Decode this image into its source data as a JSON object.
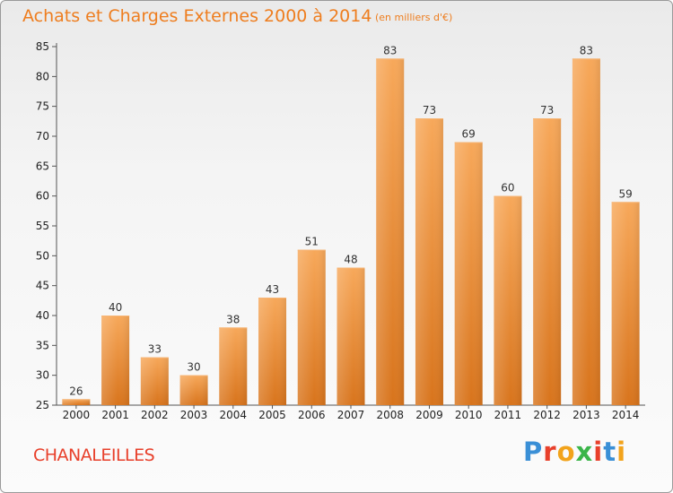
{
  "chart_data": {
    "type": "bar",
    "title": "Achats et Charges Externes 2000 à 2014",
    "subtitle": "(en milliers d'€)",
    "xlabel": "",
    "ylabel": "",
    "categories": [
      "2000",
      "2001",
      "2002",
      "2003",
      "2004",
      "2005",
      "2006",
      "2007",
      "2008",
      "2009",
      "2010",
      "2011",
      "2012",
      "2013",
      "2014"
    ],
    "values": [
      26,
      40,
      33,
      30,
      38,
      43,
      51,
      48,
      83,
      73,
      69,
      60,
      73,
      83,
      59
    ],
    "ylim": [
      25,
      85
    ],
    "yticks": [
      25,
      30,
      35,
      40,
      45,
      50,
      55,
      60,
      65,
      70,
      75,
      80,
      85
    ],
    "grid": false,
    "legend": "none",
    "bar_color": "#f09a3e"
  },
  "footer": {
    "commune": "CHANALEILLES",
    "logo_letters": [
      "P",
      "r",
      "o",
      "x",
      "i",
      "t",
      "i"
    ],
    "logo_colors": [
      "#3a8fd6",
      "#e8402b",
      "#f2a31b",
      "#3bb54a",
      "#e8402b",
      "#3a8fd6",
      "#f2a31b"
    ]
  },
  "colors": {
    "title": "#ee7d1e",
    "commune": "#e8402b"
  }
}
